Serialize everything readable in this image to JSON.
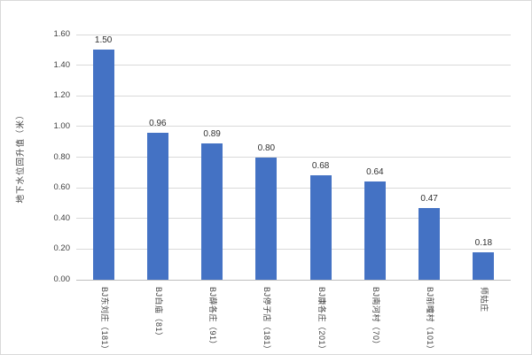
{
  "chart_data": {
    "type": "bar",
    "title": "",
    "xlabel": "",
    "ylabel": "地下水位回升值（米）",
    "categories": [
      "BJ东刘庄（181）",
      "BJ白庙（81）",
      "BJ薛各庄（91）",
      "BJ停子店（181）",
      "BJ康各庄（201）",
      "BJ南河村（70）",
      "BJ前疃村（101）",
      "师姑庄"
    ],
    "values": [
      1.5,
      0.96,
      0.89,
      0.8,
      0.68,
      0.64,
      0.47,
      0.18
    ],
    "value_labels": [
      "1.50",
      "0.96",
      "0.89",
      "0.80",
      "0.68",
      "0.64",
      "0.47",
      "0.18"
    ],
    "ylim": [
      0,
      1.6
    ],
    "ytick_step": 0.2,
    "yticks": [
      "0.00",
      "0.20",
      "0.40",
      "0.60",
      "0.80",
      "1.00",
      "1.20",
      "1.40",
      "1.60"
    ],
    "grid": true,
    "legend": "none",
    "bar_color": "#4472C4",
    "gridline_color": "#D9D9D9",
    "axis_line_color": "#BFBFBF",
    "text_color": "#404040",
    "background_color": "#FFFFFF"
  }
}
